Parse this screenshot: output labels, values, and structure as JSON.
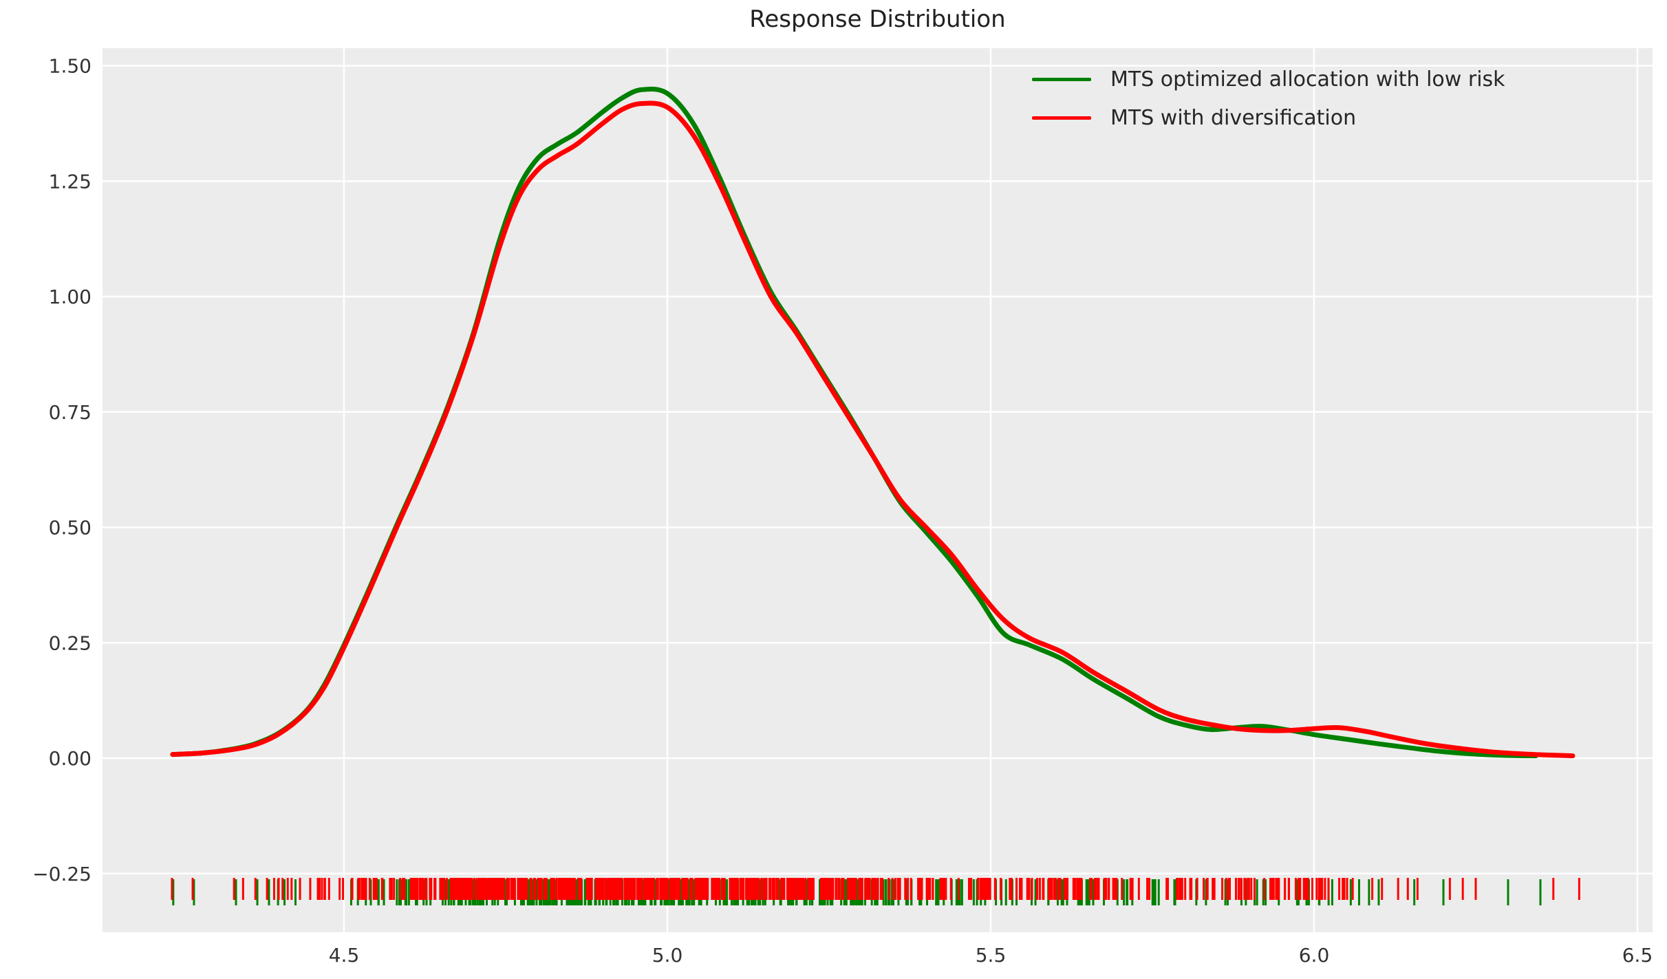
{
  "title": "Response Distribution",
  "legend": [
    {
      "label": "MTS optimized allocation with low risk",
      "color": "#008000"
    },
    {
      "label": "MTS with diversification",
      "color": "#ff0000"
    }
  ],
  "colors": {
    "figure_background": "#ffffff",
    "plot_background": "#ececec",
    "gridline": "#ffffff",
    "tick_label": "#333333",
    "title": "#212121",
    "series_green": "#008000",
    "series_red": "#ff0000"
  },
  "axes": {
    "x_tick_labels": [
      "4.5",
      "5.0",
      "5.5",
      "6.0",
      "6.5"
    ],
    "x_tick_values": [
      4.5,
      5.0,
      5.5,
      6.0,
      6.5
    ],
    "y_tick_labels": [
      "1.50",
      "1.25",
      "1.00",
      "0.75",
      "0.50",
      "0.25",
      "0.00",
      "−0.25"
    ],
    "y_tick_values": [
      1.5,
      1.25,
      1.0,
      0.75,
      0.5,
      0.25,
      0.0,
      -0.25
    ],
    "xlim": [
      4.127,
      6.523
    ],
    "ylim": [
      -0.377,
      1.538
    ]
  },
  "chart_data": {
    "type": "line",
    "title": "Response Distribution",
    "xlabel": "",
    "ylabel": "",
    "grid": true,
    "legend_position": "upper right",
    "series": [
      {
        "name": "MTS optimized allocation with low risk",
        "color": "#008000",
        "points": [
          [
            4.235,
            0.008
          ],
          [
            4.28,
            0.011
          ],
          [
            4.32,
            0.018
          ],
          [
            4.36,
            0.03
          ],
          [
            4.4,
            0.055
          ],
          [
            4.44,
            0.1
          ],
          [
            4.47,
            0.16
          ],
          [
            4.5,
            0.245
          ],
          [
            4.54,
            0.37
          ],
          [
            4.58,
            0.5
          ],
          [
            4.62,
            0.625
          ],
          [
            4.66,
            0.76
          ],
          [
            4.7,
            0.92
          ],
          [
            4.74,
            1.12
          ],
          [
            4.77,
            1.235
          ],
          [
            4.8,
            1.3
          ],
          [
            4.83,
            1.33
          ],
          [
            4.86,
            1.355
          ],
          [
            4.9,
            1.4
          ],
          [
            4.93,
            1.43
          ],
          [
            4.96,
            1.448
          ],
          [
            5.0,
            1.44
          ],
          [
            5.04,
            1.375
          ],
          [
            5.08,
            1.26
          ],
          [
            5.12,
            1.13
          ],
          [
            5.16,
            1.01
          ],
          [
            5.2,
            0.925
          ],
          [
            5.24,
            0.835
          ],
          [
            5.28,
            0.745
          ],
          [
            5.32,
            0.65
          ],
          [
            5.36,
            0.555
          ],
          [
            5.4,
            0.49
          ],
          [
            5.44,
            0.425
          ],
          [
            5.48,
            0.35
          ],
          [
            5.52,
            0.27
          ],
          [
            5.56,
            0.245
          ],
          [
            5.61,
            0.215
          ],
          [
            5.66,
            0.17
          ],
          [
            5.71,
            0.13
          ],
          [
            5.76,
            0.09
          ],
          [
            5.8,
            0.072
          ],
          [
            5.84,
            0.062
          ],
          [
            5.88,
            0.066
          ],
          [
            5.92,
            0.069
          ],
          [
            5.96,
            0.061
          ],
          [
            6.0,
            0.051
          ],
          [
            6.05,
            0.041
          ],
          [
            6.1,
            0.031
          ],
          [
            6.15,
            0.022
          ],
          [
            6.2,
            0.014
          ],
          [
            6.26,
            0.008
          ],
          [
            6.31,
            0.0055
          ],
          [
            6.343,
            0.005
          ]
        ]
      },
      {
        "name": "MTS with diversification",
        "color": "#ff0000",
        "points": [
          [
            4.235,
            0.008
          ],
          [
            4.28,
            0.011
          ],
          [
            4.32,
            0.017
          ],
          [
            4.36,
            0.028
          ],
          [
            4.4,
            0.053
          ],
          [
            4.44,
            0.098
          ],
          [
            4.47,
            0.155
          ],
          [
            4.5,
            0.24
          ],
          [
            4.54,
            0.365
          ],
          [
            4.58,
            0.495
          ],
          [
            4.62,
            0.62
          ],
          [
            4.66,
            0.755
          ],
          [
            4.7,
            0.915
          ],
          [
            4.74,
            1.105
          ],
          [
            4.77,
            1.215
          ],
          [
            4.8,
            1.275
          ],
          [
            4.83,
            1.305
          ],
          [
            4.86,
            1.33
          ],
          [
            4.9,
            1.375
          ],
          [
            4.93,
            1.405
          ],
          [
            4.96,
            1.418
          ],
          [
            5.0,
            1.41
          ],
          [
            5.04,
            1.35
          ],
          [
            5.08,
            1.245
          ],
          [
            5.12,
            1.12
          ],
          [
            5.16,
            1.0
          ],
          [
            5.2,
            0.92
          ],
          [
            5.24,
            0.83
          ],
          [
            5.28,
            0.74
          ],
          [
            5.32,
            0.65
          ],
          [
            5.36,
            0.56
          ],
          [
            5.4,
            0.5
          ],
          [
            5.44,
            0.44
          ],
          [
            5.48,
            0.365
          ],
          [
            5.52,
            0.3
          ],
          [
            5.56,
            0.26
          ],
          [
            5.61,
            0.23
          ],
          [
            5.66,
            0.185
          ],
          [
            5.71,
            0.145
          ],
          [
            5.76,
            0.105
          ],
          [
            5.8,
            0.085
          ],
          [
            5.84,
            0.073
          ],
          [
            5.88,
            0.064
          ],
          [
            5.92,
            0.06
          ],
          [
            5.96,
            0.06
          ],
          [
            6.0,
            0.064
          ],
          [
            6.04,
            0.066
          ],
          [
            6.08,
            0.058
          ],
          [
            6.12,
            0.046
          ],
          [
            6.17,
            0.032
          ],
          [
            6.22,
            0.022
          ],
          [
            6.28,
            0.013
          ],
          [
            6.34,
            0.008
          ],
          [
            6.4,
            0.005
          ]
        ]
      }
    ],
    "rug": {
      "band_y_value": -0.29,
      "dense_range": [
        4.44,
        6.07
      ],
      "seed": 42,
      "uniform_mix": 0.3,
      "green": {
        "dense_count": 340,
        "sparse": [
          4.236,
          4.268,
          4.333,
          4.366,
          4.384,
          4.398,
          4.408,
          4.425,
          6.085,
          6.1,
          6.155,
          6.2,
          6.3,
          6.35
        ]
      },
      "red": {
        "dense_count": 680,
        "sparse": [
          4.234,
          4.266,
          4.33,
          4.344,
          4.363,
          4.381,
          4.392,
          4.399,
          4.405,
          4.413,
          4.419,
          4.432,
          6.09,
          6.105,
          6.13,
          6.145,
          6.16,
          6.21,
          6.23,
          6.25,
          6.37,
          6.41
        ]
      }
    }
  }
}
